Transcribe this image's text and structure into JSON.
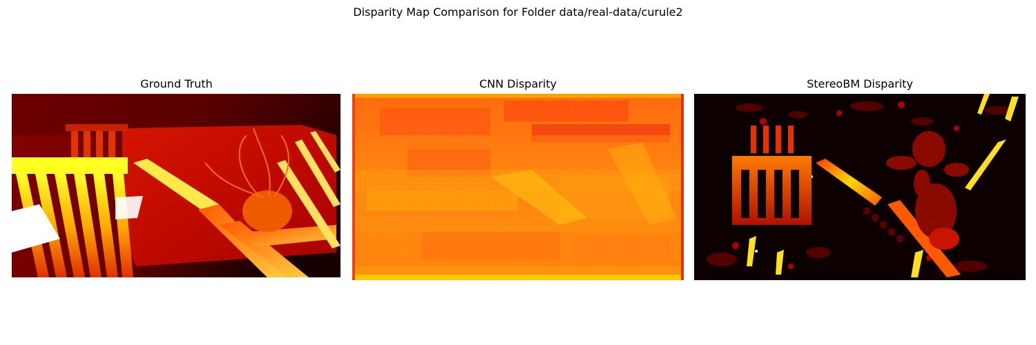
{
  "figure": {
    "title": "Disparity Map Comparison for Folder data/real-data/curule2",
    "panels": [
      {
        "title": "Ground Truth"
      },
      {
        "title": "CNN Disparity"
      },
      {
        "title": "StereoBM Disparity"
      }
    ],
    "colormap": [
      "#0b0000",
      "#5a0000",
      "#b20000",
      "#ff2000",
      "#ff8a00",
      "#ffd200",
      "#ffff5a",
      "#ffffff"
    ]
  }
}
